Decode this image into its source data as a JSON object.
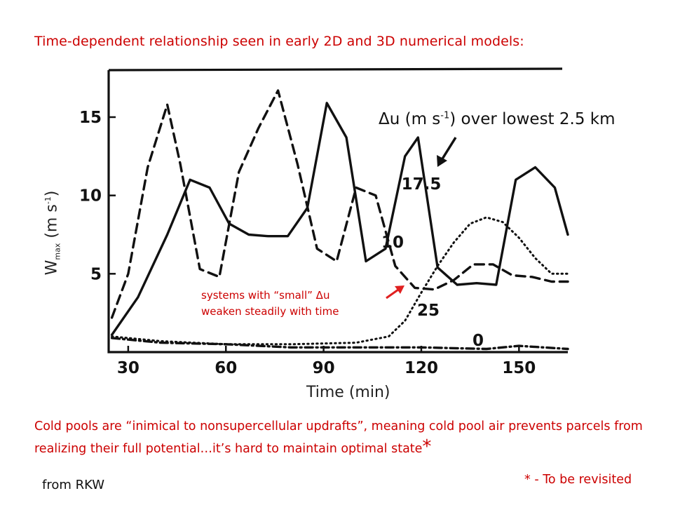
{
  "top_caption": "Time-dependent relationship seen in early 2D and 3D numerical models:",
  "legend_title_parts": {
    "delta": "Δ",
    "text1": "u (m s",
    "sup": "-1",
    "text2": ") over lowest 2.5 km"
  },
  "axis": {
    "xlabel": "Time (min)",
    "ylabel_main": "W",
    "ylabel_sub": "max",
    "ylabel_rest": " (m s",
    "ylabel_sup": "-1",
    "ylabel_end": ")"
  },
  "annotation": {
    "line1_a": "systems with “small” ",
    "line1_delta": "Δ",
    "line1_b": "u",
    "line2": "weaken steadily with time"
  },
  "bottom_caption": {
    "text": "Cold pools are “inimical to nonsupercellular updrafts”, meaning cold pool air prevents parcels from realizing their full potential…it’s hard to maintain optimal state",
    "star": "*"
  },
  "footnote": "* - To be revisited",
  "source": "from RKW",
  "colors": {
    "caption_red": "#cc0000",
    "arrow_red": "#e02020",
    "ink": "#111111"
  },
  "chart_data": {
    "type": "line",
    "xlabel": "Time (min)",
    "ylabel": "Wmax (m s-1)",
    "xlim": [
      24,
      165
    ],
    "ylim": [
      0,
      18
    ],
    "xticks": [
      30,
      60,
      90,
      120,
      150
    ],
    "yticks": [
      5,
      10,
      15
    ],
    "grid": false,
    "legend": "inline curve labels",
    "series": [
      {
        "name": "17.5",
        "style": "solid",
        "x": [
          25,
          33,
          42,
          49,
          55,
          61,
          67,
          73,
          79,
          85,
          91,
          97,
          103,
          109,
          115,
          119,
          125,
          131,
          137,
          143,
          149,
          155,
          161,
          165
        ],
        "y": [
          1.1,
          3.5,
          7.5,
          11.0,
          10.5,
          8.2,
          7.5,
          7.4,
          7.4,
          9.2,
          15.9,
          13.7,
          5.8,
          6.6,
          12.5,
          13.7,
          5.4,
          4.3,
          4.4,
          4.3,
          11.0,
          11.8,
          10.5,
          7.5
        ]
      },
      {
        "name": "10",
        "style": "dashed",
        "x": [
          25,
          30,
          36,
          42,
          46,
          52,
          58,
          64,
          70,
          76,
          82,
          88,
          94,
          100,
          106,
          112,
          118,
          124,
          130,
          136,
          142,
          148,
          154,
          160,
          165
        ],
        "y": [
          2.2,
          5.0,
          11.8,
          15.8,
          12.0,
          5.3,
          4.8,
          11.5,
          14.3,
          16.7,
          12.0,
          6.6,
          5.8,
          10.5,
          10.0,
          5.5,
          4.1,
          4.0,
          4.6,
          5.6,
          5.6,
          4.9,
          4.8,
          4.5,
          4.5
        ]
      },
      {
        "name": "25",
        "style": "dotted",
        "x": [
          25,
          40,
          60,
          80,
          100,
          110,
          115,
          120,
          125,
          130,
          135,
          140,
          145,
          150,
          155,
          160,
          165
        ],
        "y": [
          1.0,
          0.7,
          0.5,
          0.5,
          0.6,
          1.0,
          2.0,
          3.8,
          5.5,
          7.0,
          8.2,
          8.6,
          8.3,
          7.3,
          6.0,
          5.0,
          5.0
        ]
      },
      {
        "name": "0",
        "style": "dash-dot",
        "x": [
          25,
          40,
          60,
          80,
          100,
          120,
          140,
          150,
          165
        ],
        "y": [
          0.9,
          0.6,
          0.5,
          0.3,
          0.3,
          0.3,
          0.2,
          0.4,
          0.2
        ]
      }
    ]
  }
}
